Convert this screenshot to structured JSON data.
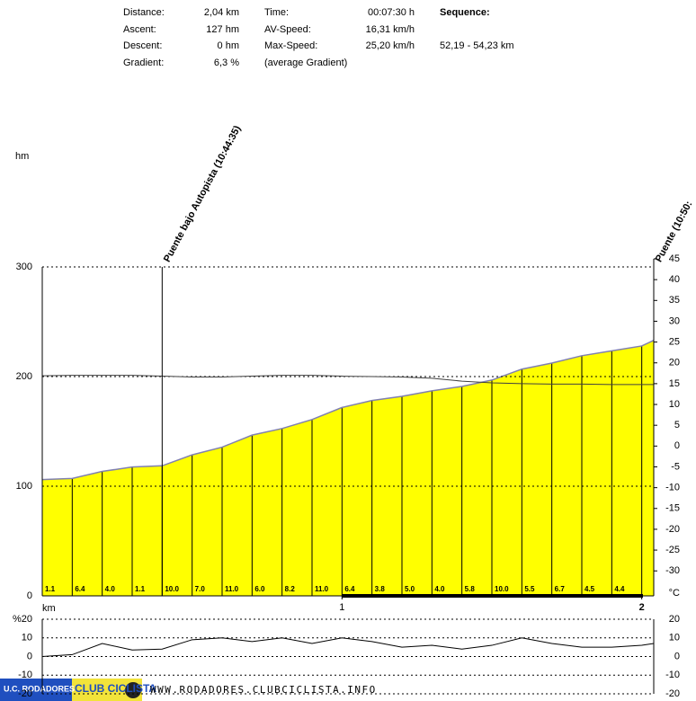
{
  "header": {
    "columns": [
      [
        {
          "label": "Distance:",
          "value": "2,04 km"
        },
        {
          "label": "Ascent:",
          "value": "127 hm"
        },
        {
          "label": "Descent:",
          "value": "0 hm"
        },
        {
          "label": "Gradient:",
          "value": "6,3 %"
        }
      ],
      [
        {
          "label": "Time:",
          "value": "00:07:30 h"
        },
        {
          "label": "AV-Speed:",
          "value": "16,31 km/h"
        },
        {
          "label": "Max-Speed:",
          "value": "25,20 km/h"
        },
        {
          "label": "(average Gradient)"
        }
      ],
      [
        {
          "label": "Sequence:"
        },
        {
          "label": "52,19 - 54,23 km"
        }
      ]
    ]
  },
  "chart_data": [
    {
      "type": "area",
      "y_label": "hm",
      "x_label": "km",
      "y2_label": "°C",
      "x": [
        0,
        0.1,
        0.2,
        0.3,
        0.4,
        0.5,
        0.6,
        0.7,
        0.8,
        0.9,
        1.0,
        1.1,
        1.2,
        1.3,
        1.4,
        1.5,
        1.6,
        1.7,
        1.8,
        1.9,
        2.0,
        2.04
      ],
      "xlim": [
        0,
        2.04
      ],
      "xticks": [
        1,
        2
      ],
      "ylim": [
        0,
        300
      ],
      "yticks": [
        0,
        100,
        200,
        300
      ],
      "y2lim": [
        -36,
        45
      ],
      "y2ticks": [
        -30,
        -25,
        -20,
        -15,
        -10,
        -5,
        0,
        5,
        10,
        15,
        20,
        25,
        30,
        35,
        40,
        45
      ],
      "grid": true,
      "series": [
        {
          "color": "#ffff00",
          "values": [
            106,
            107.1,
            113.5,
            117.5,
            118.6,
            128.6,
            135.6,
            146.6,
            152.6,
            160.8,
            171.8,
            178.2,
            182,
            187,
            191,
            196.8,
            206.8,
            212.3,
            219,
            223.5,
            227.9,
            233
          ]
        },
        {
          "color": "#404040",
          "axis": "y2",
          "values": [
            16.9,
            17,
            17,
            17,
            16.8,
            16.6,
            16.6,
            16.8,
            17,
            17,
            16.8,
            16.7,
            16.6,
            16.3,
            15.6,
            15.2,
            15,
            14.9,
            14.9,
            14.8,
            14.8,
            14.8
          ]
        }
      ],
      "segment_gradients": [
        1.1,
        6.4,
        4.0,
        1.1,
        10.0,
        7.0,
        11.0,
        6.0,
        8.2,
        11.0,
        6.4,
        3.8,
        5.0,
        4.0,
        5.8,
        10.0,
        5.5,
        6.7,
        4.5,
        4.4
      ],
      "segment_gradient_labels": [
        "1.1",
        "6.4",
        "4.0",
        "1.1",
        "10.0",
        "7.0",
        "11.0",
        "6.0",
        "8.2",
        "11.0",
        "6.4",
        "3.8",
        "5.0",
        "4.0",
        "5.8",
        "10.0",
        "5.5",
        "6.7",
        "4.5",
        "4.4"
      ],
      "waypoints": [
        {
          "x": 0.4,
          "label": "Puente bajo Autopista (10:44:35)"
        },
        {
          "x": 2.04,
          "label": "Puente (10:50:"
        }
      ]
    },
    {
      "type": "line",
      "y_label": "%",
      "x": [
        0,
        0.1,
        0.2,
        0.3,
        0.4,
        0.5,
        0.6,
        0.7,
        0.8,
        0.9,
        1.0,
        1.1,
        1.2,
        1.3,
        1.4,
        1.5,
        1.6,
        1.7,
        1.8,
        1.9,
        2.0,
        2.04
      ],
      "xlim": [
        0,
        2.04
      ],
      "ylim": [
        -20,
        20
      ],
      "yticks": [
        -20,
        -10,
        0,
        10,
        20
      ],
      "grid": true,
      "series": [
        {
          "color": "#000000",
          "values": [
            0,
            1,
            7,
            3.5,
            4,
            9,
            10,
            8,
            10,
            7,
            10,
            8,
            5,
            6,
            4,
            6,
            10,
            7,
            5,
            5,
            6,
            7
          ]
        }
      ]
    }
  ],
  "footer": {
    "logo_top": "U.C. RODADORES",
    "logo_bottom": "CLUB CICLISTA",
    "url": "WWW.RODADORES.CLUBCICLISTA.INFO"
  }
}
